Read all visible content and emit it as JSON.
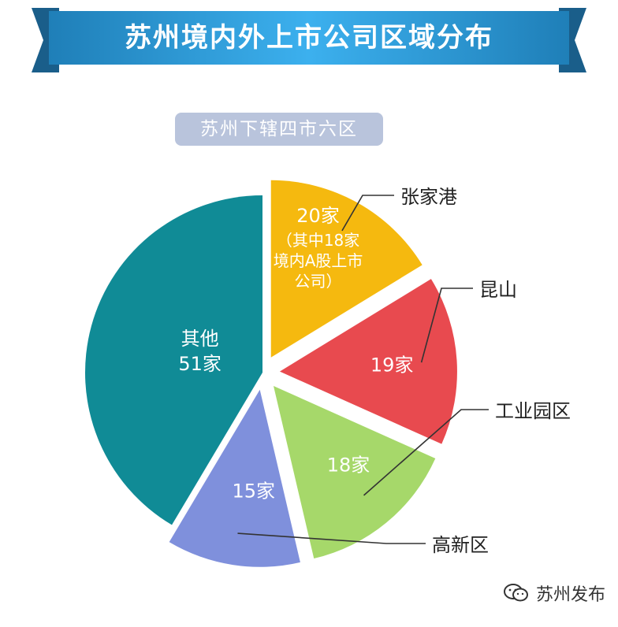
{
  "header": {
    "title": "苏州境内外上市公司区域分布"
  },
  "subtitle": "苏州下辖四市六区",
  "watermark": {
    "text": "苏州发布",
    "icon": "wechat-icon"
  },
  "colors": {
    "banner_dark": "#1f7fb8",
    "banner_light": "#3cb0ee",
    "banner_shadow": "#1a5e8a",
    "subtitle_bg": "#b9c4dc",
    "callout_line": "#333333"
  },
  "chart_data": {
    "type": "pie",
    "title": "苏州境内外上市公司区域分布",
    "subtitle": "苏州下辖四市六区",
    "unit": "家",
    "slices": [
      {
        "name": "张家港",
        "value": 20,
        "label": "20家",
        "note": [
          "（其中18家",
          "境内A股上市",
          "公司）"
        ],
        "color": "#f5b90f",
        "exploded": true
      },
      {
        "name": "昆山",
        "value": 19,
        "label": "19家",
        "color": "#e84a4f",
        "exploded": true
      },
      {
        "name": "工业园区",
        "value": 18,
        "label": "18家",
        "color": "#a6d86a",
        "exploded": true
      },
      {
        "name": "高新区",
        "value": 15,
        "label": "15家",
        "color": "#7f90dc",
        "exploded": true
      },
      {
        "name": "其他",
        "value": 51,
        "label": "51家",
        "label_prefix": "其他",
        "color": "#108b96",
        "exploded": false
      }
    ]
  }
}
